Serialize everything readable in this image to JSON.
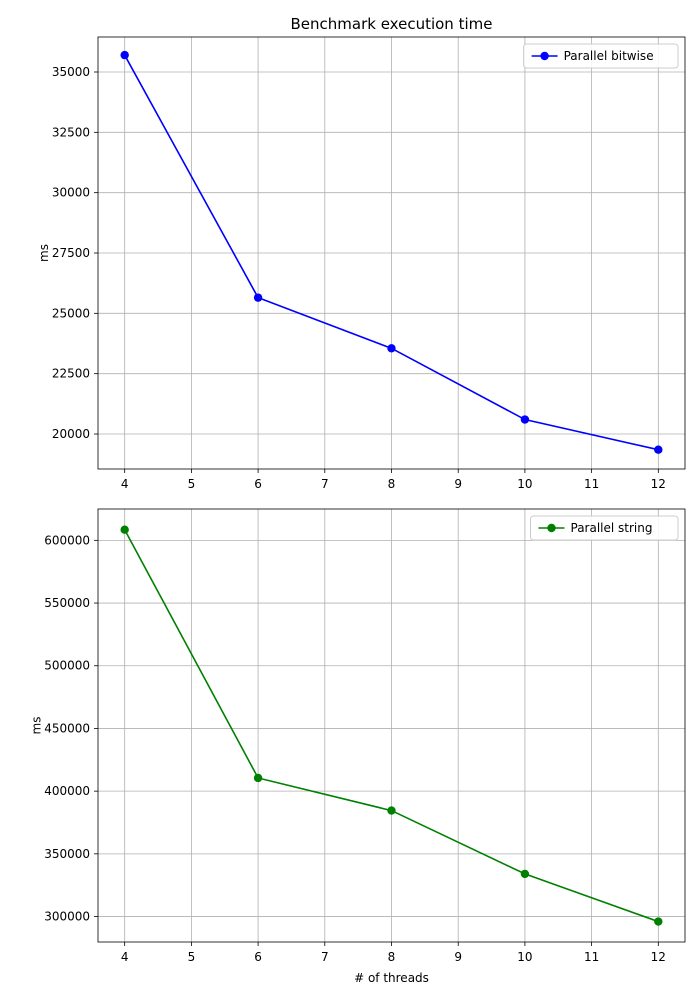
{
  "chart_data": [
    {
      "type": "line",
      "title": "Benchmark execution time",
      "xlabel": "",
      "ylabel": "ms",
      "x": [
        4,
        6,
        8,
        10,
        12
      ],
      "xticks": [
        4,
        5,
        6,
        7,
        8,
        9,
        10,
        11,
        12
      ],
      "xlim": [
        3.6,
        12.4
      ],
      "yticks": [
        20000,
        22500,
        25000,
        27500,
        30000,
        32500,
        35000
      ],
      "ylim": [
        18550,
        36450
      ],
      "grid": true,
      "legend_position": "top-right",
      "series": [
        {
          "name": "Parallel bitwise",
          "color": "#0000ff",
          "marker": "circle",
          "values": [
            35700,
            25650,
            23550,
            20600,
            19350
          ]
        }
      ]
    },
    {
      "type": "line",
      "title": "",
      "xlabel": "# of threads",
      "ylabel": "ms",
      "x": [
        4,
        6,
        8,
        10,
        12
      ],
      "xticks": [
        4,
        5,
        6,
        7,
        8,
        9,
        10,
        11,
        12
      ],
      "xlim": [
        3.6,
        12.4
      ],
      "yticks": [
        300000,
        350000,
        400000,
        450000,
        500000,
        550000,
        600000
      ],
      "ylim": [
        279700,
        625000
      ],
      "grid": true,
      "legend_position": "top-right",
      "series": [
        {
          "name": "Parallel string",
          "color": "#008000",
          "marker": "circle",
          "values": [
            608500,
            410500,
            384500,
            334000,
            296000
          ]
        }
      ]
    }
  ]
}
